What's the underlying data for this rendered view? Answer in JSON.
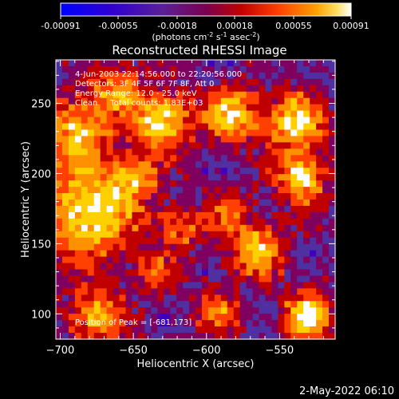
{
  "chart_data": {
    "type": "heatmap",
    "title": "Reconstructed RHESSI Image",
    "xlabel": "Heliocentric X (arcsec)",
    "ylabel": "Heliocentric Y (arcsec)",
    "xlim": [
      -703,
      -512
    ],
    "ylim": [
      82,
      281
    ],
    "x_ticks": [
      -700,
      -650,
      -600,
      -550
    ],
    "x_tick_labels": [
      "−700",
      "−650",
      "−600",
      "−550"
    ],
    "y_ticks": [
      100,
      150,
      200,
      250
    ],
    "y_tick_labels": [
      "100",
      "150",
      "200",
      "250"
    ],
    "colorbar": {
      "ticks": [
        -0.00091,
        -0.00055,
        -0.00018,
        0.00018,
        0.00055,
        0.00091
      ],
      "tick_labels": [
        "-0.00091",
        "-0.00055",
        "-0.00018",
        "0.00018",
        "0.00055",
        "0.00091"
      ],
      "units_text": "(photons cm",
      "units_exp1": "-2",
      "units_mid": " s",
      "units_exp2": "-1",
      "units_mid2": " asec",
      "units_exp3": "-2",
      "units_close": ")",
      "range": [
        -0.00091,
        0.00091
      ],
      "colormap": [
        "#0000ff",
        "#4000c0",
        "#5030a0",
        "#800060",
        "#c00000",
        "#ff4000",
        "#ff9000",
        "#ffd000",
        "#ffffff"
      ]
    },
    "annotations": [
      "4-Jun-2003 22:14:56.000 to 22:20:56.000",
      "Detectors: 3F 4F 5F 6F 7F 8F, Att 0",
      "Energy Range: 12.0 - 25.0 keV",
      "Clean     Total counts: 1.83E+03"
    ],
    "peak_label": "Position of Peak = [-681,173]",
    "peak": [
      -681,
      173
    ],
    "timestamp": "2-May-2022 06:10"
  }
}
